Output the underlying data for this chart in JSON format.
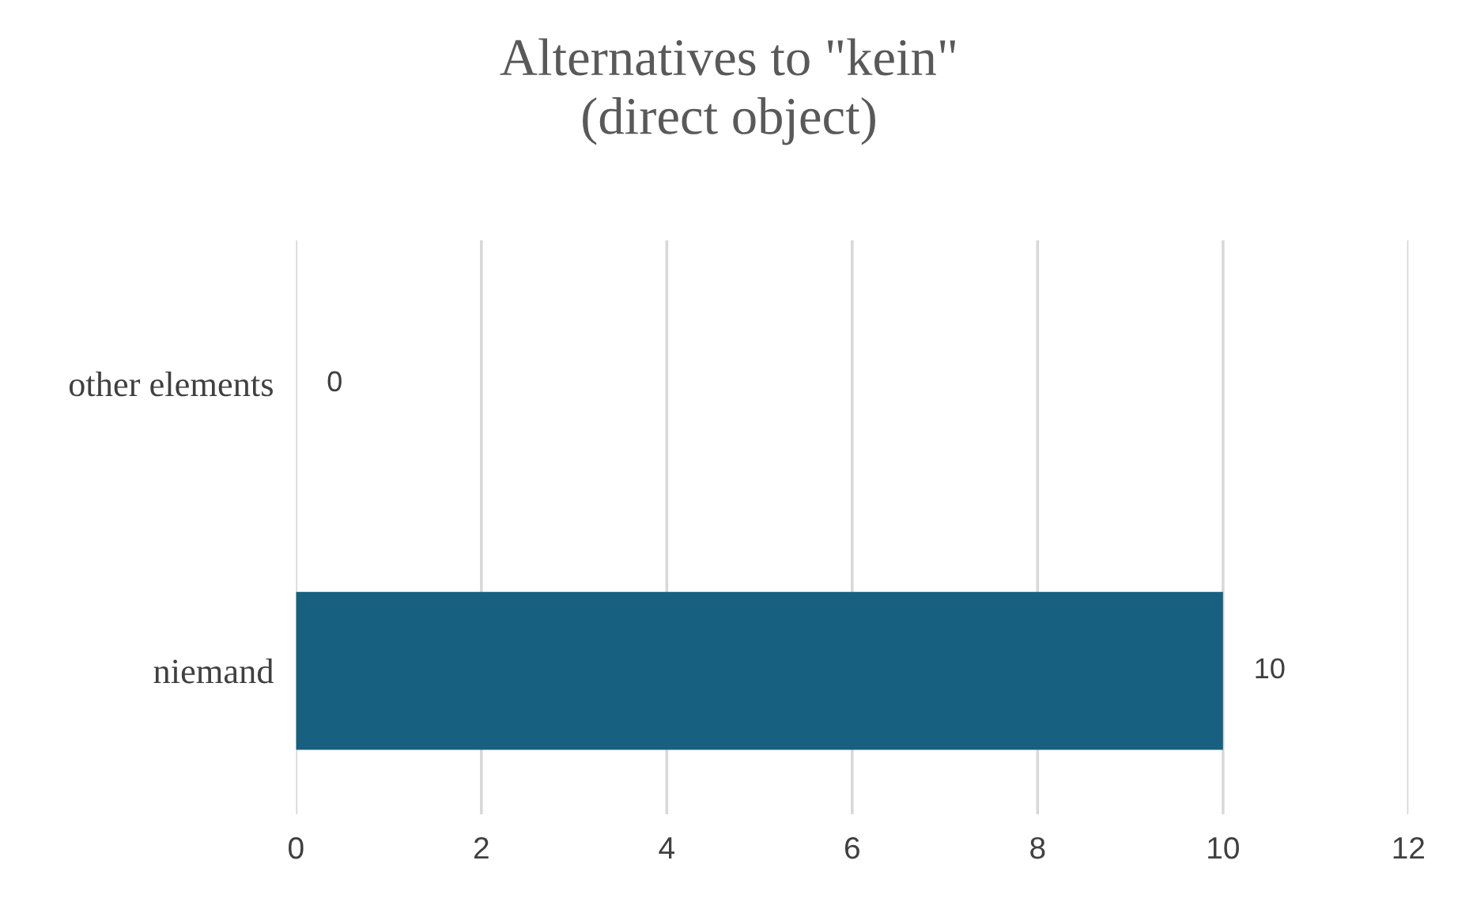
{
  "chart_data": {
    "type": "bar",
    "orientation": "horizontal",
    "title": "Alternatives to \"kein\"\n(direct object)",
    "categories": [
      "other elements",
      "niemand"
    ],
    "values": [
      0,
      10
    ],
    "color": "#17607f",
    "xlim": [
      0,
      12
    ],
    "xticks": [
      0,
      2,
      4,
      6,
      8,
      10,
      12
    ],
    "grid": "x",
    "data_labels": true
  }
}
